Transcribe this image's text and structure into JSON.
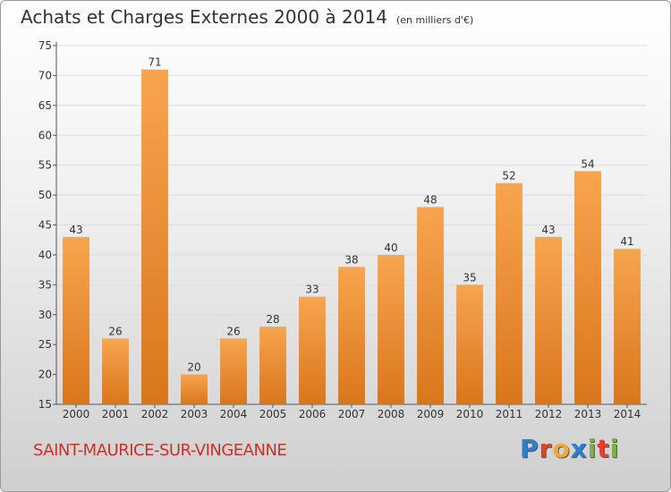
{
  "title": {
    "main": "Achats et Charges Externes 2000 à 2014",
    "unit": "(en milliers d'€)"
  },
  "town": "SAINT-MAURICE-SUR-VINGEANNE",
  "logo": {
    "text": "Proxiti",
    "letters": [
      {
        "ch": "P",
        "color": "#2e7fc7"
      },
      {
        "ch": "r",
        "color": "#e0422b"
      },
      {
        "ch": "o",
        "color": "#f2a93b"
      },
      {
        "ch": "x",
        "color": "#2e7fc7"
      },
      {
        "ch": "i",
        "color": "#7cb342"
      },
      {
        "ch": "t",
        "color": "#e0422b"
      },
      {
        "ch": "i",
        "color": "#7cb342"
      }
    ]
  },
  "colors": {
    "bar_light": "#f7a54f",
    "bar_dark": "#d9761c",
    "axis": "#555555",
    "grid": "#dddddd",
    "title": "#333333",
    "town": "#c8322a"
  },
  "chart_data": {
    "type": "bar",
    "title": "Achats et Charges Externes 2000 à 2014",
    "subtitle": "(en milliers d'€)",
    "categories": [
      "2000",
      "2001",
      "2002",
      "2003",
      "2004",
      "2005",
      "2006",
      "2007",
      "2008",
      "2009",
      "2010",
      "2011",
      "2012",
      "2013",
      "2014"
    ],
    "values": [
      43,
      26,
      71,
      20,
      26,
      28,
      33,
      38,
      40,
      48,
      35,
      52,
      43,
      54,
      41
    ],
    "xlabel": "",
    "ylabel": "",
    "ylim": [
      15,
      75
    ],
    "yticks": [
      15,
      20,
      25,
      30,
      35,
      40,
      45,
      50,
      55,
      60,
      65,
      70,
      75
    ],
    "grid": true,
    "data_labels": true
  }
}
